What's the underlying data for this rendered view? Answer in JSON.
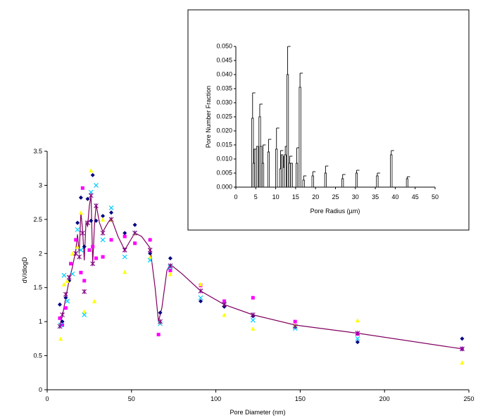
{
  "chart_data": [
    {
      "type": "scatter",
      "xlabel": "Pore Diameter (nm)",
      "ylabel": "dV/dlogD",
      "xlim": [
        0,
        250
      ],
      "ylim": [
        0,
        3.5
      ],
      "x_ticks": [
        "0",
        "50",
        "100",
        "150",
        "200",
        "250"
      ],
      "y_ticks": [
        "0",
        "0.5",
        "1",
        "1.5",
        "2",
        "2.5",
        "3",
        "3.5"
      ],
      "grid": false,
      "legend": "none",
      "series": [
        {
          "color": "#000080",
          "marker": "diamond",
          "points": [
            [
              7.5,
              1.25
            ],
            [
              9,
              1.0
            ],
            [
              11,
              1.35
            ],
            [
              13,
              1.6
            ],
            [
              18,
              2.45
            ],
            [
              20,
              2.82
            ],
            [
              22,
              2.1
            ],
            [
              24,
              2.8
            ],
            [
              26,
              2.48
            ],
            [
              27,
              3.15
            ],
            [
              29,
              2.48
            ],
            [
              33,
              2.55
            ],
            [
              38,
              2.6
            ],
            [
              46,
              2.3
            ],
            [
              52,
              2.42
            ],
            [
              61,
              2.0
            ],
            [
              67,
              1.13
            ],
            [
              73,
              1.93
            ],
            [
              91,
              1.3
            ],
            [
              105,
              1.22
            ],
            [
              122,
              1.08
            ],
            [
              147,
              0.92
            ],
            [
              184,
              0.7
            ],
            [
              246,
              0.75
            ]
          ]
        },
        {
          "color": "#ff00ff",
          "marker": "square",
          "points": [
            [
              7.5,
              1.05
            ],
            [
              9,
              0.95
            ],
            [
              11,
              1.2
            ],
            [
              14,
              1.85
            ],
            [
              17,
              2.2
            ],
            [
              20,
              1.72
            ],
            [
              21,
              2.96
            ],
            [
              22,
              1.6
            ],
            [
              25,
              2.05
            ],
            [
              27,
              2.1
            ],
            [
              29,
              1.93
            ],
            [
              33,
              1.95
            ],
            [
              38,
              2.2
            ],
            [
              46,
              2.25
            ],
            [
              52,
              2.15
            ],
            [
              61,
              2.2
            ],
            [
              66,
              0.81
            ],
            [
              73,
              1.75
            ],
            [
              91,
              1.53
            ],
            [
              105,
              1.3
            ],
            [
              122,
              1.35
            ],
            [
              147,
              1.0
            ],
            [
              184,
              0.82
            ],
            [
              246,
              0.6
            ]
          ]
        },
        {
          "color": "#ffff00",
          "marker": "triangle",
          "points": [
            [
              8,
              0.75
            ],
            [
              10,
              1.55
            ],
            [
              12,
              1.6
            ],
            [
              15,
              2.0
            ],
            [
              18,
              2.1
            ],
            [
              20,
              2.6
            ],
            [
              22,
              1.15
            ],
            [
              26,
              3.22
            ],
            [
              28,
              1.3
            ],
            [
              33,
              2.5
            ],
            [
              38,
              2.5
            ],
            [
              46,
              1.73
            ],
            [
              52,
              2.3
            ],
            [
              61,
              1.95
            ],
            [
              67,
              1.0
            ],
            [
              73,
              1.7
            ],
            [
              91,
              1.55
            ],
            [
              105,
              1.1
            ],
            [
              122,
              0.9
            ],
            [
              147,
              0.95
            ],
            [
              184,
              1.02
            ],
            [
              246,
              0.4
            ]
          ]
        },
        {
          "color": "#00ccff",
          "marker": "x",
          "points": [
            [
              8,
              0.95
            ],
            [
              10,
              1.68
            ],
            [
              12,
              1.3
            ],
            [
              15,
              1.7
            ],
            [
              18,
              2.35
            ],
            [
              20,
              2.05
            ],
            [
              22,
              1.1
            ],
            [
              26,
              2.9
            ],
            [
              29,
              3.0
            ],
            [
              33,
              2.2
            ],
            [
              38,
              2.67
            ],
            [
              46,
              1.95
            ],
            [
              52,
              2.3
            ],
            [
              61,
              1.9
            ],
            [
              67,
              0.97
            ],
            [
              73,
              1.8
            ],
            [
              91,
              1.35
            ],
            [
              105,
              1.25
            ],
            [
              122,
              1.02
            ],
            [
              147,
              0.9
            ],
            [
              184,
              0.75
            ],
            [
              246,
              0.6
            ]
          ]
        },
        {
          "color": "#800080",
          "marker": "star",
          "points": [
            [
              7.5,
              0.93
            ],
            [
              9,
              1.1
            ],
            [
              11,
              1.4
            ],
            [
              13,
              1.65
            ],
            [
              17,
              2.0
            ],
            [
              19,
              1.95
            ],
            [
              21,
              2.3
            ],
            [
              22,
              1.44
            ],
            [
              24,
              2.45
            ],
            [
              26,
              2.85
            ],
            [
              27,
              1.85
            ],
            [
              29,
              2.7
            ],
            [
              33,
              2.3
            ],
            [
              38,
              2.5
            ],
            [
              46,
              2.05
            ],
            [
              52,
              2.3
            ],
            [
              61,
              2.05
            ],
            [
              67,
              1.0
            ],
            [
              73,
              1.82
            ],
            [
              91,
              1.45
            ],
            [
              105,
              1.25
            ],
            [
              122,
              1.1
            ],
            [
              147,
              0.93
            ],
            [
              184,
              0.83
            ],
            [
              246,
              0.6
            ]
          ]
        }
      ],
      "fit_line": {
        "color": "#800060",
        "points": [
          [
            7.5,
            0.95
          ],
          [
            9,
            1.08
          ],
          [
            11,
            1.35
          ],
          [
            13,
            1.6
          ],
          [
            15,
            1.8
          ],
          [
            17,
            2.05
          ],
          [
            18,
            2.28
          ],
          [
            19,
            2.0
          ],
          [
            20,
            2.6
          ],
          [
            21,
            2.35
          ],
          [
            22,
            1.9
          ],
          [
            23,
            2.45
          ],
          [
            24,
            2.4
          ],
          [
            25,
            2.7
          ],
          [
            26,
            2.85
          ],
          [
            27,
            1.85
          ],
          [
            28,
            2.4
          ],
          [
            29,
            2.72
          ],
          [
            31,
            2.45
          ],
          [
            33,
            2.32
          ],
          [
            36,
            2.45
          ],
          [
            38,
            2.52
          ],
          [
            42,
            2.25
          ],
          [
            46,
            2.05
          ],
          [
            50,
            2.22
          ],
          [
            52,
            2.3
          ],
          [
            56,
            2.25
          ],
          [
            61,
            2.08
          ],
          [
            64,
            1.5
          ],
          [
            66,
            1.0
          ],
          [
            68,
            1.2
          ],
          [
            71,
            1.75
          ],
          [
            73,
            1.84
          ],
          [
            80,
            1.7
          ],
          [
            91,
            1.45
          ],
          [
            105,
            1.25
          ],
          [
            122,
            1.1
          ],
          [
            147,
            0.95
          ],
          [
            184,
            0.83
          ],
          [
            246,
            0.6
          ]
        ]
      }
    },
    {
      "type": "bar",
      "xlabel": "Pore Radius (µm)",
      "ylabel": "Pore Number Fraction",
      "xlim": [
        0,
        50
      ],
      "ylim": [
        0,
        0.05
      ],
      "x_ticks": [
        "0",
        "5",
        "10",
        "15",
        "20",
        "25",
        "30",
        "35",
        "40",
        "45",
        "50"
      ],
      "y_ticks": [
        "0.000",
        "0.005",
        "0.010",
        "0.015",
        "0.020",
        "0.025",
        "0.030",
        "0.035",
        "0.040",
        "0.045",
        "0.050"
      ],
      "bars": [
        {
          "x": 4.2,
          "value": 0.0245,
          "err": 0.009
        },
        {
          "x": 4.5,
          "value": 0.0085,
          "err": 0.005
        },
        {
          "x": 5.0,
          "value": 0.0135,
          "err": 0.0
        },
        {
          "x": 5.4,
          "value": 0.0145,
          "err": 0.0
        },
        {
          "x": 6.0,
          "value": 0.025,
          "err": 0.0045
        },
        {
          "x": 6.3,
          "value": 0.0145,
          "err": 0.0
        },
        {
          "x": 6.8,
          "value": 0.0085,
          "err": 0.0065
        },
        {
          "x": 8.2,
          "value": 0.0125,
          "err": 0.0045
        },
        {
          "x": 10.2,
          "value": 0.0135,
          "err": 0.0075
        },
        {
          "x": 11.2,
          "value": 0.0065,
          "err": 0.0065
        },
        {
          "x": 11.6,
          "value": 0.0115,
          "err": 0.0
        },
        {
          "x": 12.0,
          "value": 0.007,
          "err": 0.004
        },
        {
          "x": 12.4,
          "value": 0.0115,
          "err": 0.003
        },
        {
          "x": 13.0,
          "value": 0.04,
          "err": 0.01
        },
        {
          "x": 13.5,
          "value": 0.0085,
          "err": 0.0025
        },
        {
          "x": 14.0,
          "value": 0.0085,
          "err": 0.0
        },
        {
          "x": 15.3,
          "value": 0.0085,
          "err": 0.0055
        },
        {
          "x": 16.1,
          "value": 0.0355,
          "err": 0.005
        },
        {
          "x": 17.0,
          "value": 0.0025,
          "err": 0.0015
        },
        {
          "x": 19.3,
          "value": 0.004,
          "err": 0.0015
        },
        {
          "x": 22.5,
          "value": 0.005,
          "err": 0.0025
        },
        {
          "x": 26.8,
          "value": 0.003,
          "err": 0.0015
        },
        {
          "x": 30.3,
          "value": 0.005,
          "err": 0.001
        },
        {
          "x": 35.5,
          "value": 0.004,
          "err": 0.001
        },
        {
          "x": 39.0,
          "value": 0.0115,
          "err": 0.0015
        },
        {
          "x": 43.0,
          "value": 0.003,
          "err": 0.0007
        }
      ]
    }
  ]
}
